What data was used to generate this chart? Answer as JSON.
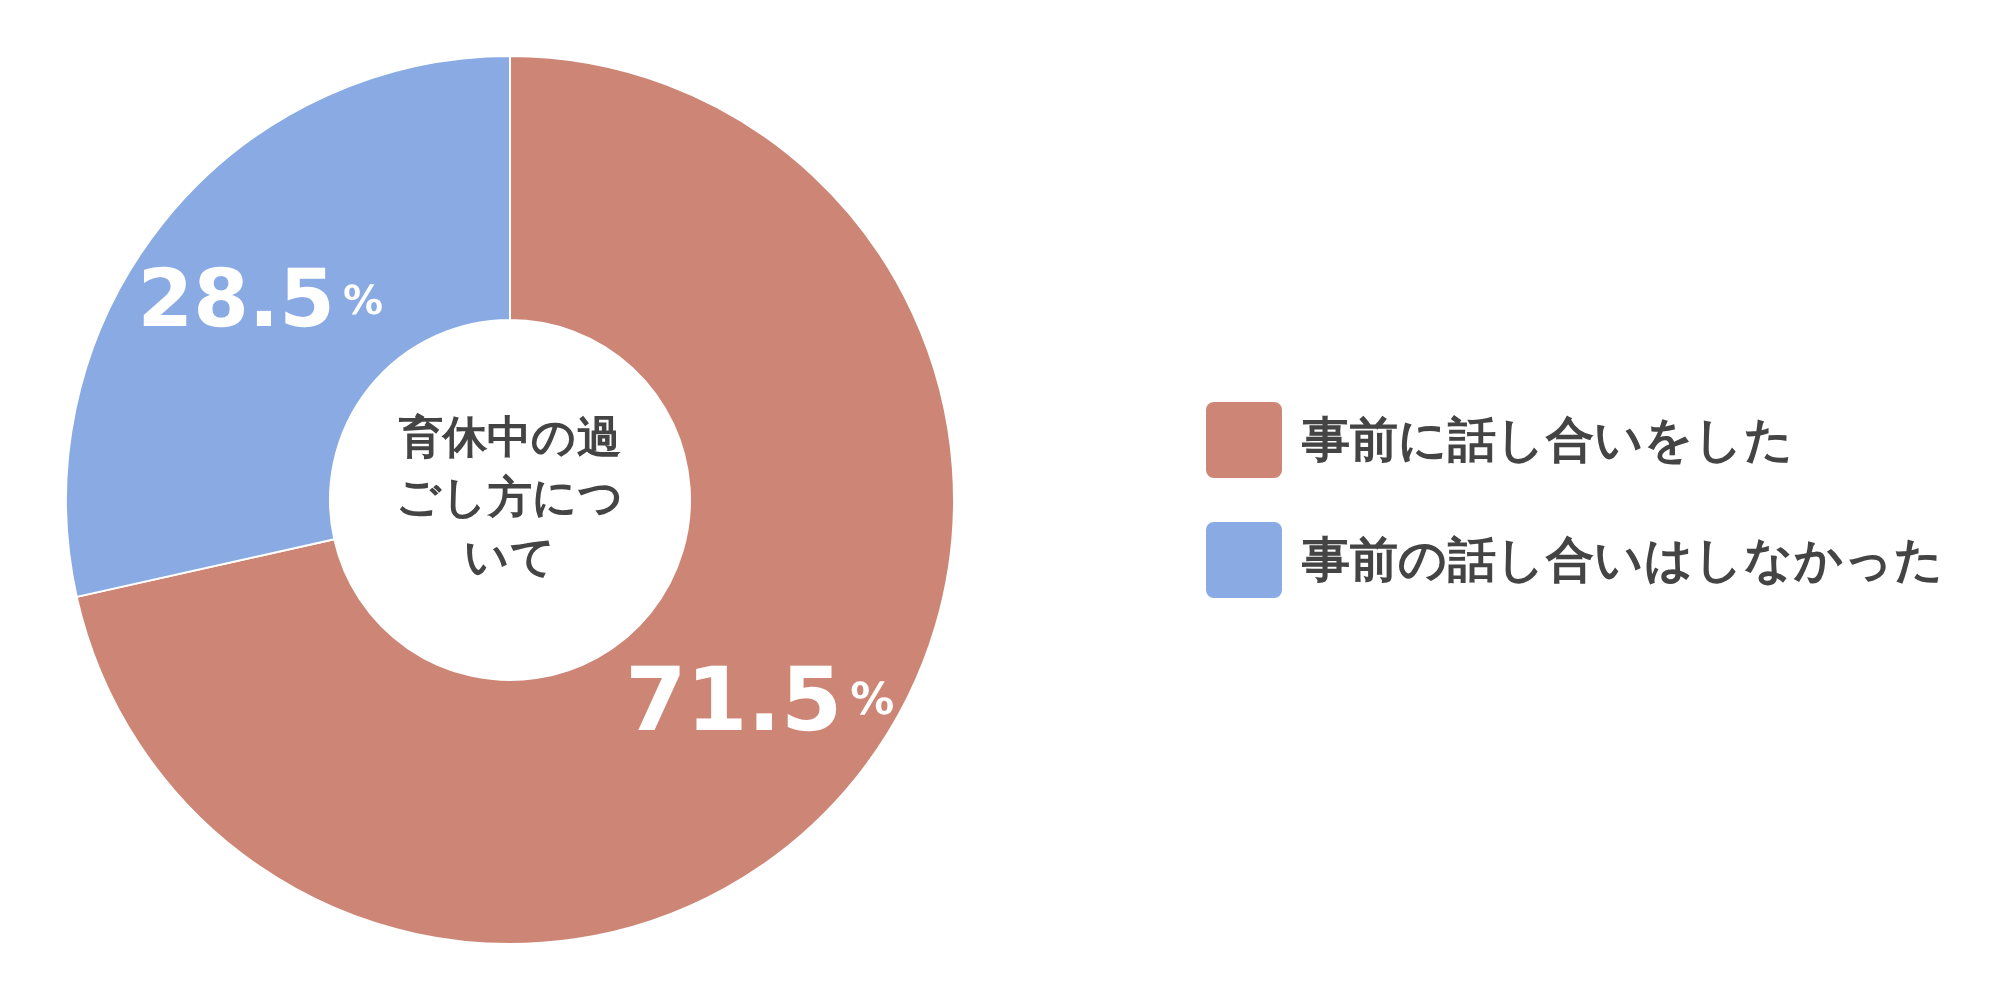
{
  "chart_data": {
    "type": "donut",
    "title": "育休中の過ごし方について",
    "categories": [
      "事前に話し合いをした",
      "事前の話し合いはしなかった"
    ],
    "values": [
      71.5,
      28.5
    ],
    "colors": [
      "#cd8676",
      "#8aaae3"
    ],
    "value_labels": [
      "71.5%",
      "28.5%"
    ],
    "legend": "right"
  }
}
